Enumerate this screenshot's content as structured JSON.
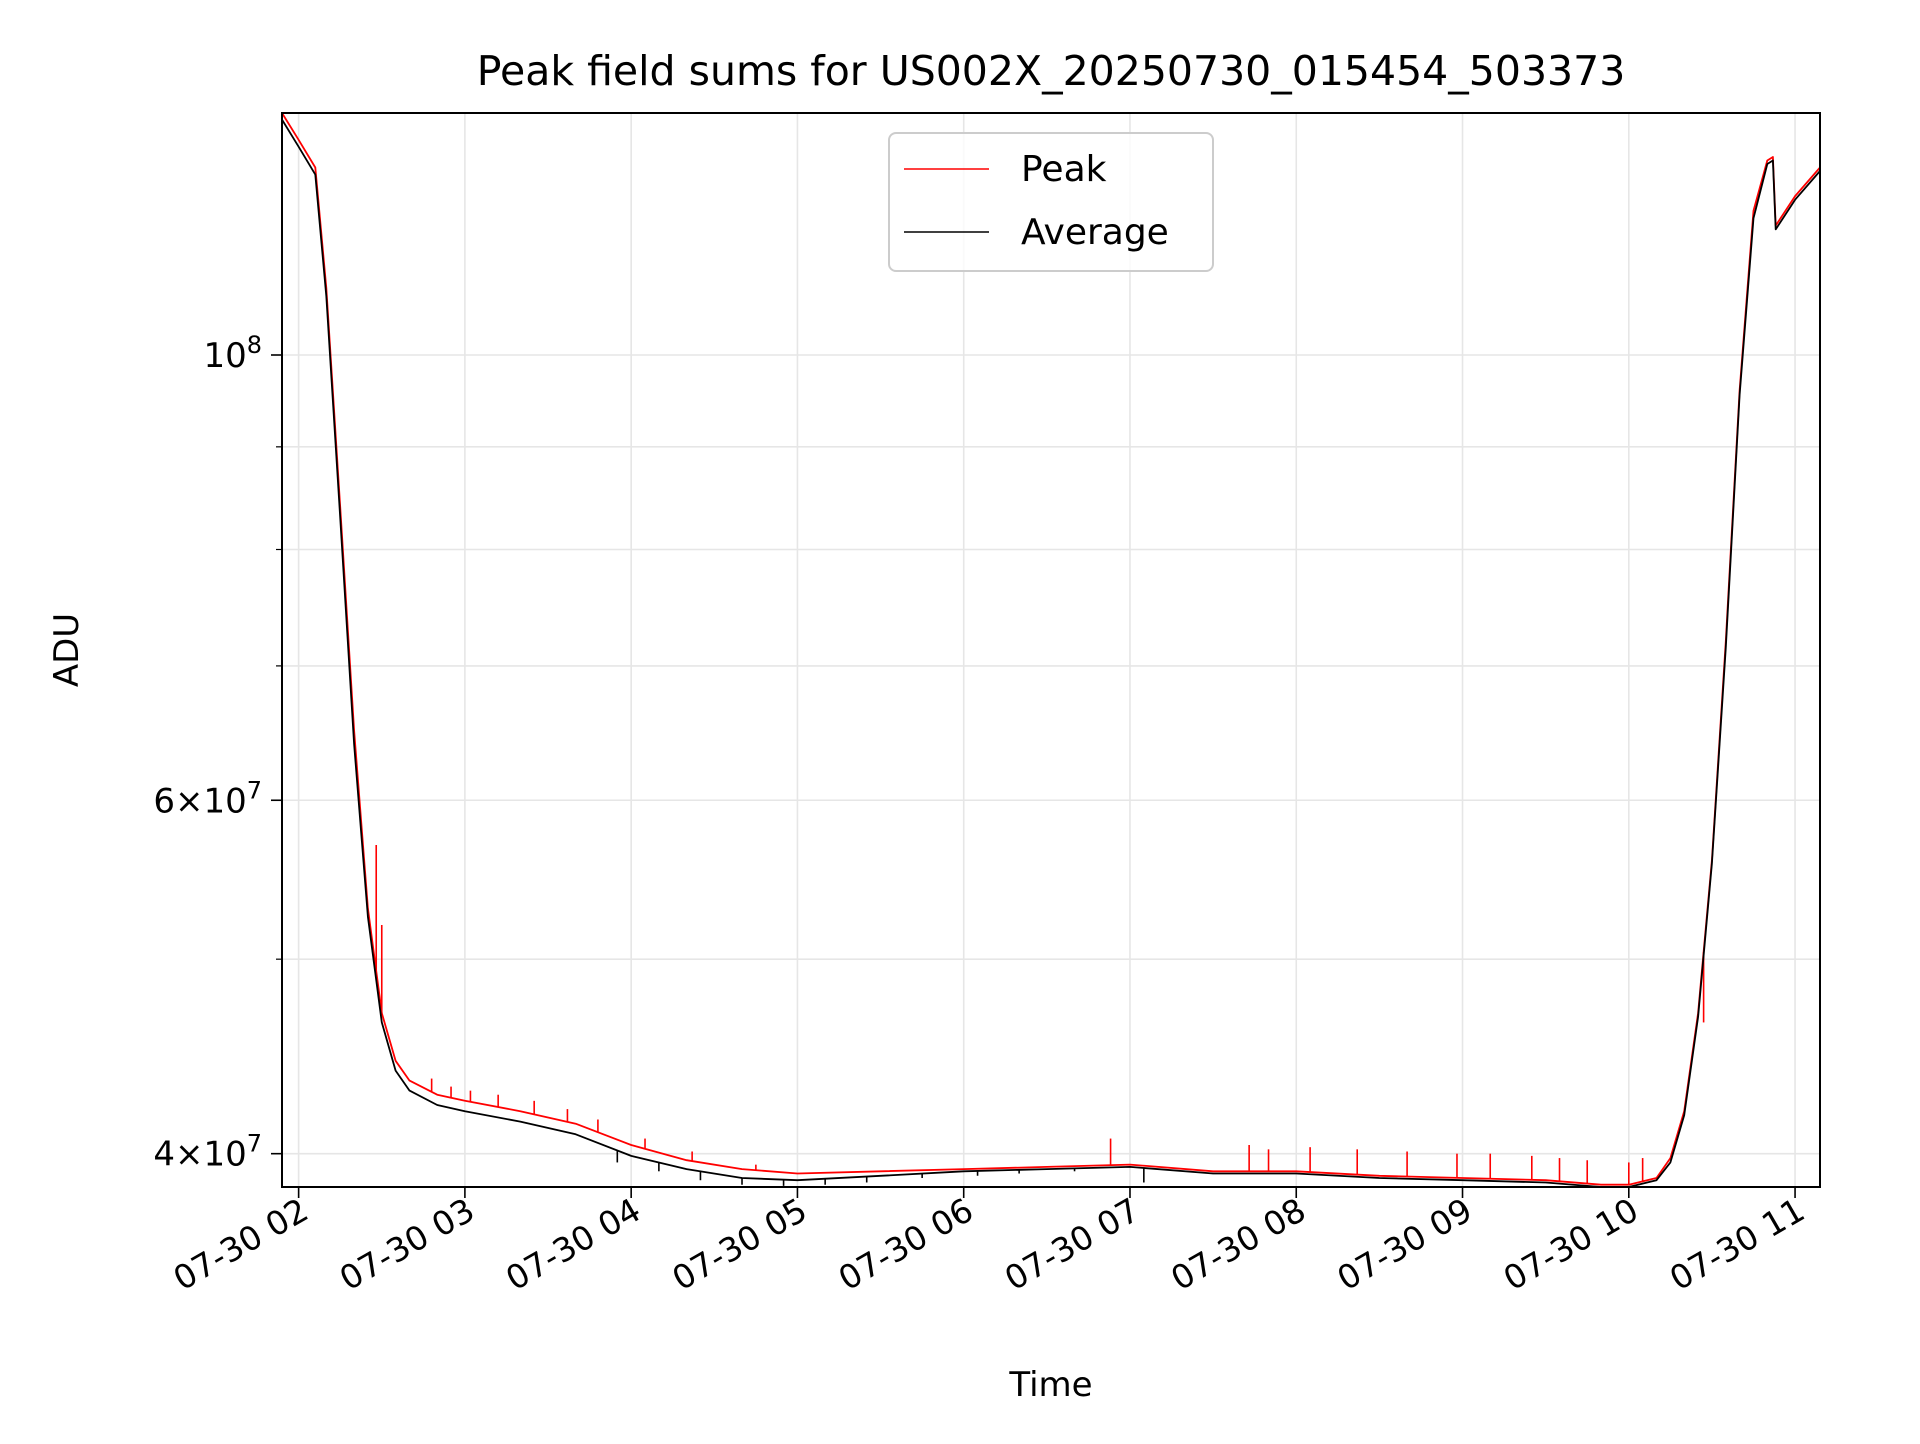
{
  "chart_data": {
    "type": "line",
    "title": "Peak field sums for US002X_20250730_015454_503373",
    "xlabel": "Time",
    "ylabel": "ADU",
    "x_scale": "time",
    "y_scale": "log",
    "xlim": [
      "07-30 01:54",
      "07-30 11:09"
    ],
    "ylim": [
      38500000,
      132000000
    ],
    "x_ticks": [
      "07-30 02",
      "07-30 03",
      "07-30 04",
      "07-30 05",
      "07-30 06",
      "07-30 07",
      "07-30 08",
      "07-30 09",
      "07-30 10",
      "07-30 11"
    ],
    "y_ticks": [
      {
        "value": 40000000,
        "base": "4",
        "exp": "7",
        "style": "mant"
      },
      {
        "value": 60000000,
        "base": "6",
        "exp": "7",
        "style": "mant"
      },
      {
        "value": 100000000,
        "base": "10",
        "exp": "8",
        "style": "pow"
      }
    ],
    "y_minor_ticks": [
      50000000,
      70000000,
      80000000,
      90000000
    ],
    "grid": true,
    "legend_position": "upper center",
    "series": [
      {
        "name": "Peak",
        "color": "#ff0000",
        "x": [
          "07-30 01:54",
          "07-30 02:00",
          "07-30 02:06",
          "07-30 02:10",
          "07-30 02:15",
          "07-30 02:20",
          "07-30 02:25",
          "07-30 02:30",
          "07-30 02:35",
          "07-30 02:40",
          "07-30 02:50",
          "07-30 03:00",
          "07-30 03:20",
          "07-30 03:40",
          "07-30 04:00",
          "07-30 04:20",
          "07-30 04:40",
          "07-30 05:00",
          "07-30 05:30",
          "07-30 06:00",
          "07-30 06:30",
          "07-30 07:00",
          "07-30 07:30",
          "07-30 08:00",
          "07-30 08:30",
          "07-30 09:00",
          "07-30 09:30",
          "07-30 09:50",
          "07-30 10:00",
          "07-30 10:10",
          "07-30 10:15",
          "07-30 10:20",
          "07-30 10:25",
          "07-30 10:30",
          "07-30 10:35",
          "07-30 10:40",
          "07-30 10:45",
          "07-30 10:50",
          "07-30 10:52",
          "07-30 10:53",
          "07-30 11:00",
          "07-30 11:09"
        ],
        "y": [
          132000000,
          128000000,
          124000000,
          108000000,
          84000000,
          65000000,
          53000000,
          47000000,
          44500000,
          43500000,
          42800000,
          42500000,
          42000000,
          41400000,
          40400000,
          39700000,
          39300000,
          39100000,
          39200000,
          39300000,
          39400000,
          39500000,
          39200000,
          39200000,
          39000000,
          38900000,
          38800000,
          38600000,
          38600000,
          38900000,
          39800000,
          42000000,
          47000000,
          56000000,
          72000000,
          96000000,
          118000000,
          125000000,
          125500000,
          116000000,
          120000000,
          124000000
        ],
        "spikes": [
          {
            "x": "07-30 02:28",
            "y": 57000000
          },
          {
            "x": "07-30 02:30",
            "y": 52000000
          },
          {
            "x": "07-30 02:48",
            "y": 43600000
          },
          {
            "x": "07-30 02:55",
            "y": 43200000
          },
          {
            "x": "07-30 03:02",
            "y": 43000000
          },
          {
            "x": "07-30 03:12",
            "y": 42800000
          },
          {
            "x": "07-30 03:25",
            "y": 42500000
          },
          {
            "x": "07-30 03:37",
            "y": 42100000
          },
          {
            "x": "07-30 03:48",
            "y": 41600000
          },
          {
            "x": "07-30 04:05",
            "y": 40700000
          },
          {
            "x": "07-30 04:22",
            "y": 40100000
          },
          {
            "x": "07-30 04:45",
            "y": 39500000
          },
          {
            "x": "07-30 06:53",
            "y": 40700000
          },
          {
            "x": "07-30 07:43",
            "y": 40400000
          },
          {
            "x": "07-30 07:50",
            "y": 40200000
          },
          {
            "x": "07-30 08:05",
            "y": 40300000
          },
          {
            "x": "07-30 08:22",
            "y": 40200000
          },
          {
            "x": "07-30 08:40",
            "y": 40100000
          },
          {
            "x": "07-30 08:58",
            "y": 40000000
          },
          {
            "x": "07-30 09:10",
            "y": 40000000
          },
          {
            "x": "07-30 09:25",
            "y": 39900000
          },
          {
            "x": "07-30 09:35",
            "y": 39800000
          },
          {
            "x": "07-30 09:45",
            "y": 39700000
          },
          {
            "x": "07-30 10:00",
            "y": 39600000
          },
          {
            "x": "07-30 10:05",
            "y": 39800000
          },
          {
            "x": "07-30 10:27",
            "y": 46500000
          }
        ]
      },
      {
        "name": "Average",
        "color": "#000000",
        "x": [
          "07-30 01:54",
          "07-30 02:00",
          "07-30 02:06",
          "07-30 02:10",
          "07-30 02:15",
          "07-30 02:20",
          "07-30 02:25",
          "07-30 02:30",
          "07-30 02:35",
          "07-30 02:40",
          "07-30 02:50",
          "07-30 03:00",
          "07-30 03:20",
          "07-30 03:40",
          "07-30 04:00",
          "07-30 04:20",
          "07-30 04:40",
          "07-30 05:00",
          "07-30 05:30",
          "07-30 06:00",
          "07-30 06:30",
          "07-30 07:00",
          "07-30 07:30",
          "07-30 08:00",
          "07-30 08:30",
          "07-30 09:00",
          "07-30 09:30",
          "07-30 09:50",
          "07-30 10:00",
          "07-30 10:10",
          "07-30 10:15",
          "07-30 10:20",
          "07-30 10:25",
          "07-30 10:30",
          "07-30 10:35",
          "07-30 10:40",
          "07-30 10:45",
          "07-30 10:50",
          "07-30 10:52",
          "07-30 10:53",
          "07-30 11:00",
          "07-30 11:09"
        ],
        "y": [
          131000000,
          127000000,
          123000000,
          107000000,
          83000000,
          64000000,
          52500000,
          46500000,
          44000000,
          43000000,
          42300000,
          42000000,
          41500000,
          40900000,
          39900000,
          39300000,
          38900000,
          38800000,
          39000000,
          39200000,
          39300000,
          39400000,
          39100000,
          39100000,
          38900000,
          38800000,
          38700000,
          38500000,
          38500000,
          38800000,
          39600000,
          41800000,
          46800000,
          55800000,
          71500000,
          95500000,
          117000000,
          124500000,
          125000000,
          115500000,
          119500000,
          123500000
        ],
        "spikes": [
          {
            "x": "07-30 03:55",
            "y": 39600000
          },
          {
            "x": "07-30 04:10",
            "y": 39200000
          },
          {
            "x": "07-30 04:25",
            "y": 38800000
          },
          {
            "x": "07-30 04:40",
            "y": 38600000
          },
          {
            "x": "07-30 04:55",
            "y": 38550000
          },
          {
            "x": "07-30 05:10",
            "y": 38600000
          },
          {
            "x": "07-30 05:25",
            "y": 38700000
          },
          {
            "x": "07-30 05:45",
            "y": 38900000
          },
          {
            "x": "07-30 06:05",
            "y": 39000000
          },
          {
            "x": "07-30 06:20",
            "y": 39100000
          },
          {
            "x": "07-30 06:40",
            "y": 39200000
          },
          {
            "x": "07-30 07:05",
            "y": 38700000
          }
        ]
      }
    ]
  }
}
